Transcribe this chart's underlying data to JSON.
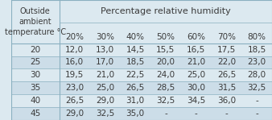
{
  "title": "Percentage relative humidity",
  "col_header_label": "Outside\nambient\ntemperature °C",
  "col_headers": [
    "20%",
    "30%",
    "40%",
    "50%",
    "60%",
    "70%",
    "80%"
  ],
  "row_headers": [
    "20",
    "25",
    "30",
    "35",
    "40",
    "45"
  ],
  "table_data": [
    [
      "12,0",
      "13,0",
      "14,5",
      "15,5",
      "16,5",
      "17,5",
      "18,5"
    ],
    [
      "16,0",
      "17,0",
      "18,5",
      "20,0",
      "21,0",
      "22,0",
      "23,0"
    ],
    [
      "19,5",
      "21,0",
      "22,5",
      "24,0",
      "25,0",
      "26,5",
      "28,0"
    ],
    [
      "23,0",
      "25,0",
      "26,5",
      "28,5",
      "30,0",
      "31,5",
      "32,5"
    ],
    [
      "26,5",
      "29,0",
      "31,0",
      "32,5",
      "34,5",
      "36,0",
      "-"
    ],
    [
      "29,0",
      "32,5",
      "35,0",
      "-",
      "-",
      "-",
      "-"
    ]
  ],
  "bg_color": "#dce9f0",
  "header_bg": "#dce9f0",
  "row_alt_color": "#ccdde8",
  "text_color": "#3a3a3a",
  "border_color": "#8ab0c0",
  "font_size": 7.5
}
